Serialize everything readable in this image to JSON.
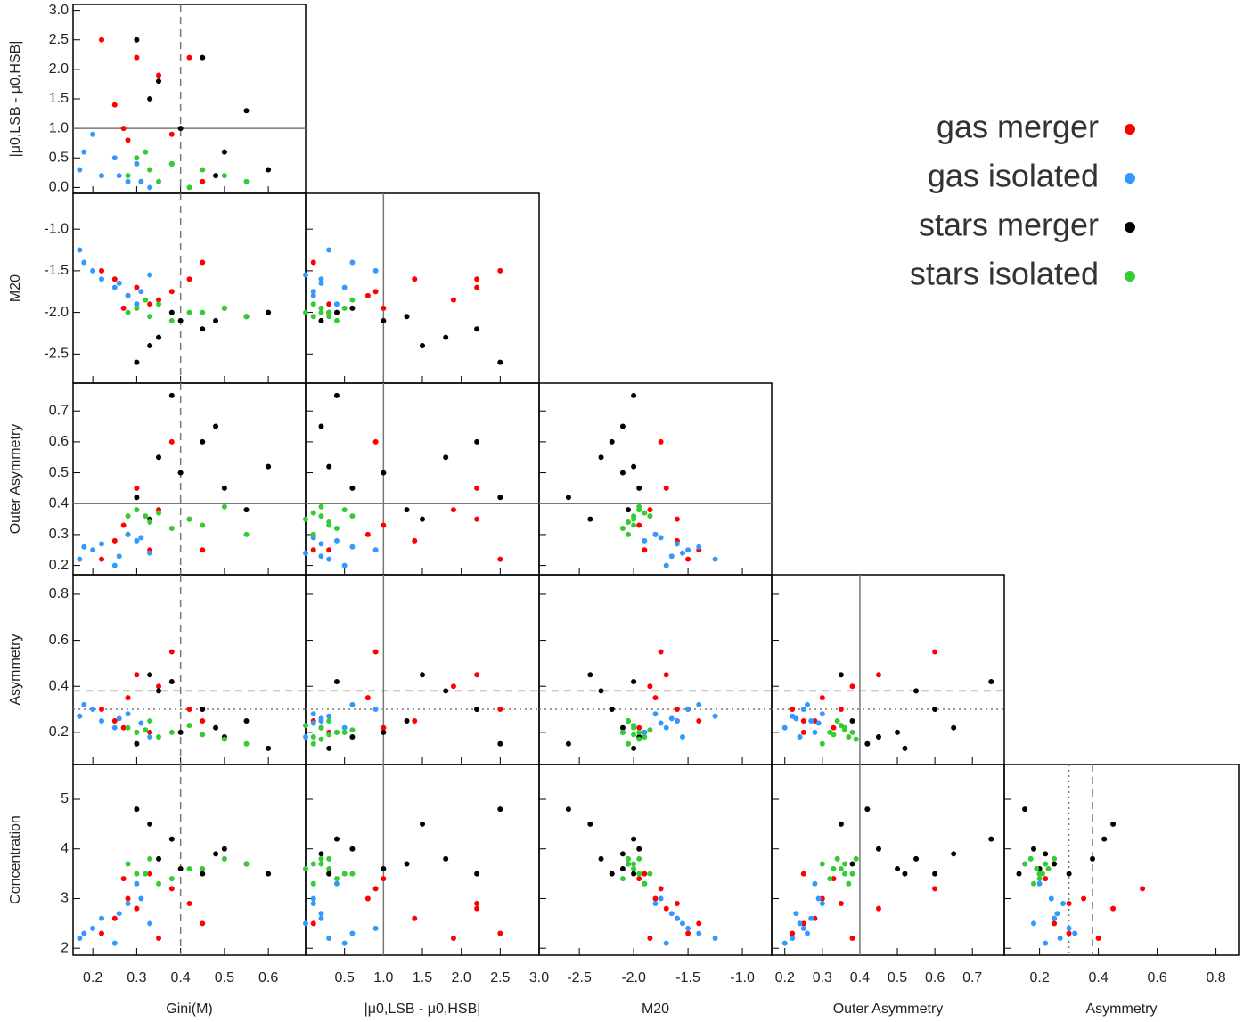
{
  "chart_data": {
    "type": "scatter_matrix",
    "variables": [
      {
        "label": "Gini(M)",
        "xlim": [
          0.155,
          0.685
        ],
        "xticks": [
          0.2,
          0.3,
          0.4,
          0.5,
          0.6
        ],
        "ref": [
          {
            "value": 0.4,
            "style": "dashed"
          }
        ]
      },
      {
        "label": "|μ0,LSB - μ0,HSB|",
        "xlim": [
          0,
          3.0
        ],
        "ylim": [
          -0.1,
          3.1
        ],
        "xticks": [
          0.5,
          {
            "value": 1,
            "label": "1.0"
          },
          1.5,
          {
            "value": 2,
            "label": "2.0"
          },
          2.5,
          {
            "value": 3,
            "label": "3.0"
          }
        ],
        "yticks": [
          {
            "value": 0,
            "label": "0.0"
          },
          0.5,
          {
            "value": 1,
            "label": "1.0"
          },
          1.5,
          {
            "value": 2,
            "label": "2.0"
          },
          2.5,
          {
            "value": 3,
            "label": "3.0"
          }
        ],
        "ref": [
          {
            "value": 1,
            "style": "solid"
          }
        ]
      },
      {
        "label": "M20",
        "xlim": [
          -2.87,
          -0.73
        ],
        "ylim": [
          -2.85,
          -0.57
        ],
        "xticks": [
          -2.5,
          {
            "value": -2,
            "label": "-2.0"
          },
          -1.5,
          {
            "value": -1,
            "label": "-1.0"
          }
        ],
        "yticks": [
          -2.5,
          {
            "value": -2,
            "label": "-2.0"
          },
          -1.5,
          {
            "value": -1,
            "label": "-1.0"
          }
        ],
        "ref": []
      },
      {
        "label": "Outer Asymmetry",
        "xlim": [
          0.165,
          0.785
        ],
        "ylim": [
          0.17,
          0.79
        ],
        "xticks": [
          0.2,
          0.3,
          0.4,
          0.5,
          0.6,
          0.7
        ],
        "yticks": [
          0.2,
          0.3,
          0.4,
          0.5,
          0.6,
          0.7
        ],
        "ref": [
          {
            "value": 0.4,
            "style": "solid"
          }
        ]
      },
      {
        "label": "Asymmetry",
        "xlim": [
          0.08,
          0.877
        ],
        "ylim": [
          0.06,
          0.885
        ],
        "xticks": [
          0.2,
          0.4,
          0.6,
          0.8
        ],
        "yticks": [
          0.2,
          0.4,
          0.6,
          0.8
        ],
        "ref": [
          {
            "value": 0.38,
            "style": "dashed"
          },
          {
            "value": 0.3,
            "style": "dotted"
          }
        ]
      },
      {
        "label": "Concentration",
        "ylim": [
          1.86,
          5.7
        ],
        "yticks": [
          2,
          3,
          4,
          5
        ],
        "ref": []
      }
    ],
    "series": [
      {
        "name": "gas merger",
        "color": "#ff0000",
        "values": [
          [
            0.22,
            0.25,
            0.28,
            0.3,
            0.33,
            0.35,
            0.38,
            0.42,
            0.45,
            0.27
          ],
          [
            2.5,
            1.4,
            0.8,
            2.2,
            0.3,
            1.9,
            0.9,
            2.2,
            0.1,
            1.0
          ],
          [
            -1.5,
            -1.6,
            -1.8,
            -1.7,
            -1.9,
            -1.85,
            -1.75,
            -1.6,
            -1.4,
            -1.95
          ],
          [
            0.22,
            0.28,
            0.3,
            0.45,
            0.25,
            0.38,
            0.6,
            0.35,
            0.25,
            0.33
          ],
          [
            0.3,
            0.25,
            0.35,
            0.45,
            0.2,
            0.4,
            0.55,
            0.3,
            0.25,
            0.22
          ],
          [
            2.3,
            2.6,
            3.0,
            2.8,
            3.5,
            2.2,
            3.2,
            2.9,
            2.5,
            3.4
          ]
        ]
      },
      {
        "name": "gas isolated",
        "color": "#3399ff",
        "values": [
          [
            0.17,
            0.2,
            0.22,
            0.25,
            0.28,
            0.3,
            0.33,
            0.18,
            0.26,
            0.31
          ],
          [
            0.3,
            0.9,
            0.2,
            0.5,
            0.1,
            0.4,
            0.0,
            0.6,
            0.2,
            0.1
          ],
          [
            -1.25,
            -1.5,
            -1.6,
            -1.7,
            -1.8,
            -1.9,
            -1.55,
            -1.4,
            -1.65,
            -1.75
          ],
          [
            0.22,
            0.25,
            0.27,
            0.2,
            0.3,
            0.28,
            0.24,
            0.26,
            0.23,
            0.29
          ],
          [
            0.27,
            0.3,
            0.25,
            0.22,
            0.28,
            0.2,
            0.18,
            0.32,
            0.26,
            0.24
          ],
          [
            2.2,
            2.4,
            2.6,
            2.1,
            2.9,
            3.3,
            2.5,
            2.3,
            2.7,
            3.0
          ]
        ]
      },
      {
        "name": "stars merger",
        "color": "#000000",
        "values": [
          [
            0.3,
            0.35,
            0.38,
            0.4,
            0.45,
            0.5,
            0.55,
            0.6,
            0.33,
            0.48
          ],
          [
            2.5,
            1.8,
            0.4,
            1.0,
            2.2,
            0.6,
            1.3,
            0.3,
            1.5,
            0.2
          ],
          [
            -2.6,
            -2.3,
            -2.0,
            -2.1,
            -2.2,
            -1.95,
            -2.05,
            -2.0,
            -2.4,
            -2.1
          ],
          [
            0.42,
            0.55,
            0.75,
            0.5,
            0.6,
            0.45,
            0.38,
            0.52,
            0.35,
            0.65
          ],
          [
            0.15,
            0.38,
            0.42,
            0.2,
            0.3,
            0.18,
            0.25,
            0.13,
            0.45,
            0.22
          ],
          [
            4.8,
            3.8,
            4.2,
            3.6,
            3.5,
            4.0,
            3.7,
            3.5,
            4.5,
            3.9
          ]
        ]
      },
      {
        "name": "stars isolated",
        "color": "#33cc33",
        "values": [
          [
            0.28,
            0.3,
            0.33,
            0.35,
            0.38,
            0.42,
            0.5,
            0.55,
            0.32,
            0.45
          ],
          [
            0.2,
            0.5,
            0.3,
            0.1,
            0.4,
            0.0,
            0.2,
            0.1,
            0.6,
            0.3
          ],
          [
            -2.0,
            -1.95,
            -2.05,
            -1.9,
            -2.1,
            -2.0,
            -1.95,
            -2.05,
            -1.85,
            -2.0
          ],
          [
            0.36,
            0.38,
            0.34,
            0.37,
            0.32,
            0.35,
            0.39,
            0.3,
            0.36,
            0.33
          ],
          [
            0.22,
            0.2,
            0.25,
            0.18,
            0.2,
            0.23,
            0.17,
            0.15,
            0.21,
            0.19
          ],
          [
            3.7,
            3.5,
            3.8,
            3.3,
            3.4,
            3.6,
            3.8,
            3.7,
            3.5,
            3.6
          ]
        ]
      }
    ]
  }
}
